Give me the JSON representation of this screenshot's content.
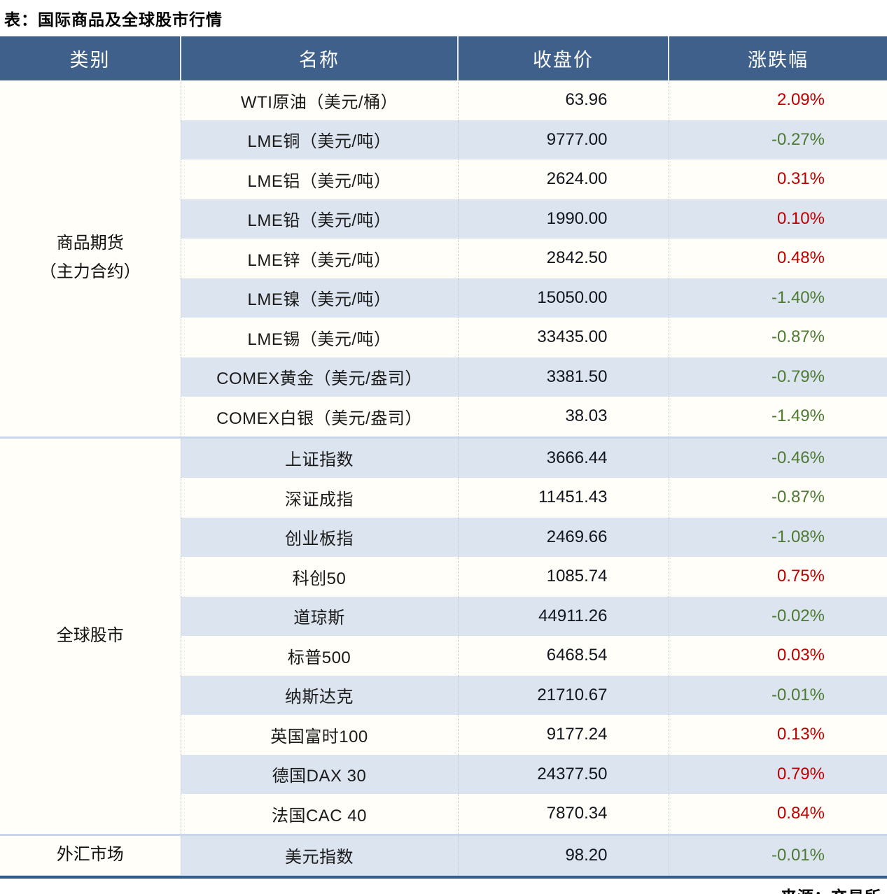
{
  "colors": {
    "header_bg": "#3E608A",
    "header_text": "#FFFFFF",
    "row_bg": "#FFFEF8",
    "row_alt_bg": "#DCE4EF",
    "up": "#C00000",
    "down": "#4E7B33",
    "text": "#1A1A1A",
    "number_text": "#12151D",
    "section_divider": "#C9D6E9",
    "column_divider": "#BFC7D3",
    "bottom_border": "#315E8E"
  },
  "chart_data": {
    "type": "table",
    "title": "表：国际商品及全球股市行情",
    "source": "来源：交易所",
    "columns": [
      "类别",
      "名称",
      "收盘价",
      "涨跌幅"
    ],
    "sections": [
      {
        "category_lines": [
          "商品期货",
          "（主力合约）"
        ],
        "rows": [
          {
            "name": "WTI原油（美元/桶）",
            "close": "63.96",
            "change": "2.09%"
          },
          {
            "name": "LME铜（美元/吨）",
            "close": "9777.00",
            "change": "-0.27%"
          },
          {
            "name": "LME铝（美元/吨）",
            "close": "2624.00",
            "change": "0.31%"
          },
          {
            "name": "LME铅（美元/吨）",
            "close": "1990.00",
            "change": "0.10%"
          },
          {
            "name": "LME锌（美元/吨）",
            "close": "2842.50",
            "change": "0.48%"
          },
          {
            "name": "LME镍（美元/吨）",
            "close": "15050.00",
            "change": "-1.40%"
          },
          {
            "name": "LME锡（美元/吨）",
            "close": "33435.00",
            "change": "-0.87%"
          },
          {
            "name": "COMEX黄金（美元/盎司）",
            "close": "3381.50",
            "change": "-0.79%"
          },
          {
            "name": "COMEX白银（美元/盎司）",
            "close": "38.03",
            "change": "-1.49%"
          }
        ]
      },
      {
        "category_lines": [
          "全球股市"
        ],
        "rows": [
          {
            "name": "上证指数",
            "close": "3666.44",
            "change": "-0.46%"
          },
          {
            "name": "深证成指",
            "close": "11451.43",
            "change": "-0.87%"
          },
          {
            "name": "创业板指",
            "close": "2469.66",
            "change": "-1.08%"
          },
          {
            "name": "科创50",
            "close": "1085.74",
            "change": "0.75%"
          },
          {
            "name": "道琼斯",
            "close": "44911.26",
            "change": "-0.02%"
          },
          {
            "name": "标普500",
            "close": "6468.54",
            "change": "0.03%"
          },
          {
            "name": "纳斯达克",
            "close": "21710.67",
            "change": "-0.01%"
          },
          {
            "name": "英国富时100",
            "close": "9177.24",
            "change": "0.13%"
          },
          {
            "name": "德国DAX 30",
            "close": "24377.50",
            "change": "0.79%"
          },
          {
            "name": "法国CAC 40",
            "close": "7870.34",
            "change": "0.84%"
          }
        ]
      },
      {
        "category_lines": [
          "外汇市场"
        ],
        "rows": [
          {
            "name": "美元指数",
            "close": "98.20",
            "change": "-0.01%"
          }
        ]
      }
    ]
  }
}
